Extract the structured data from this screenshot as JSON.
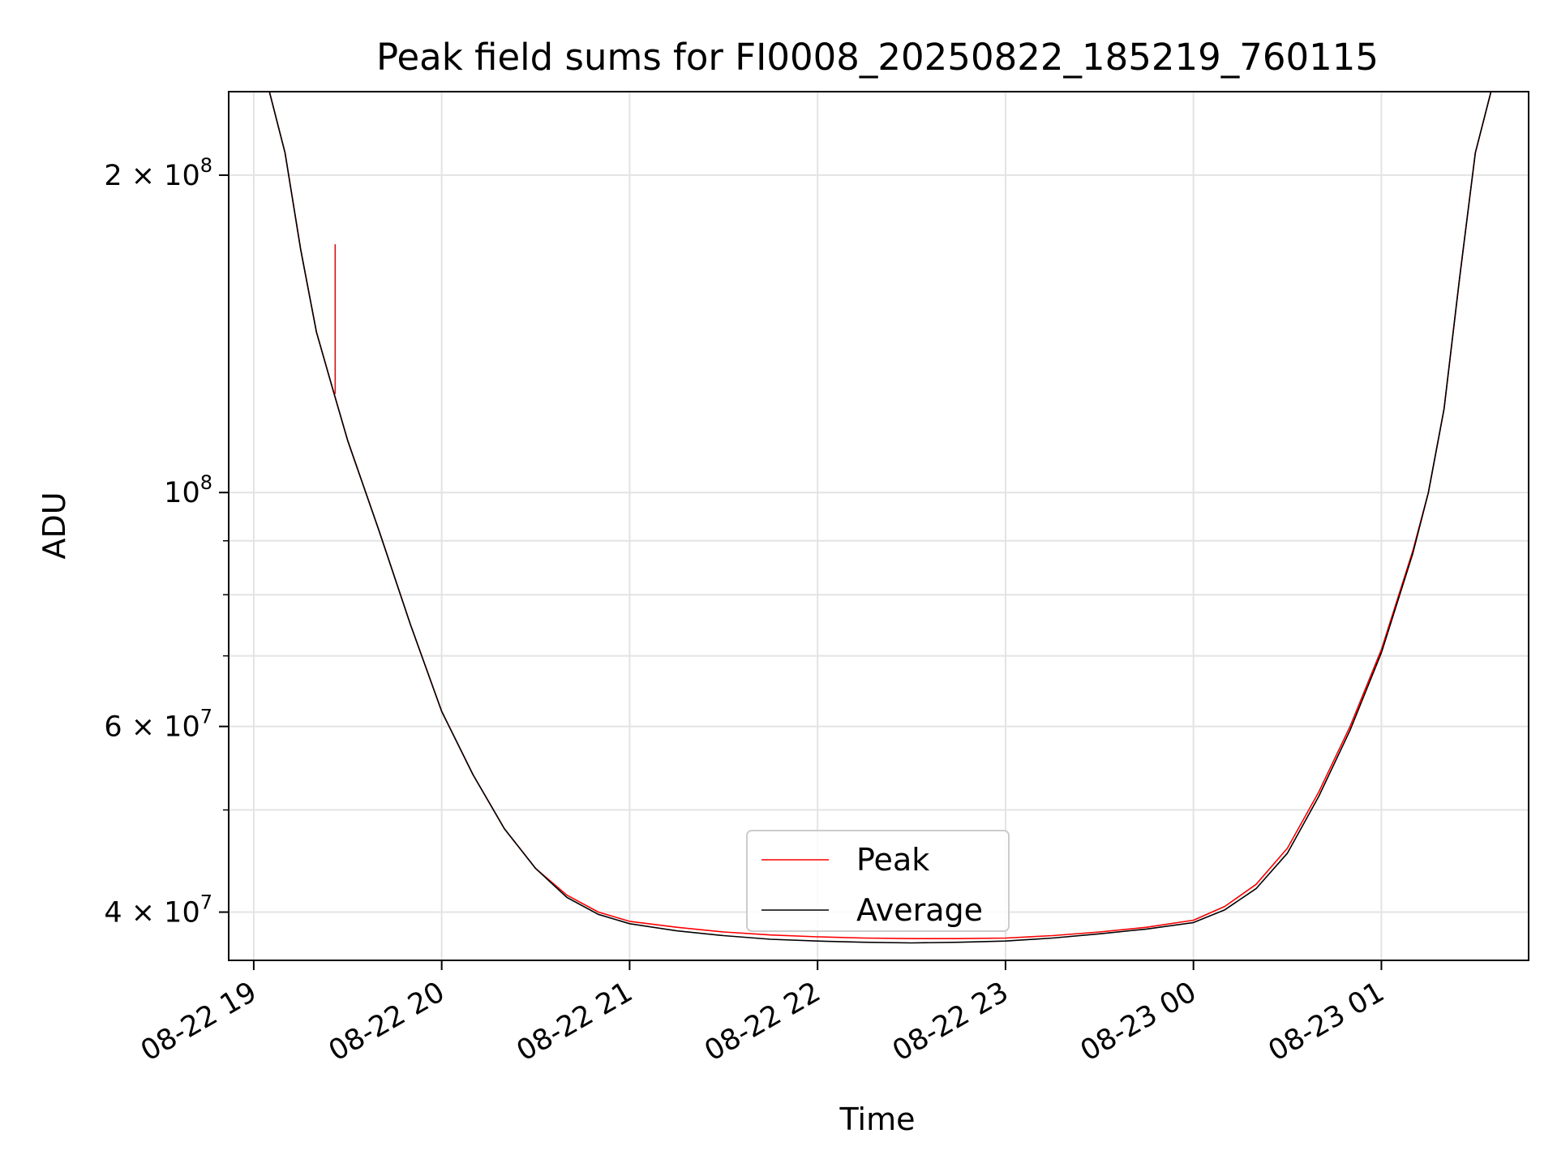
{
  "chart_data": {
    "type": "line",
    "title": "Peak field sums for FI0008_20250822_185219_760115",
    "xlabel": "Time",
    "ylabel": "ADU",
    "x_axis": "datetime",
    "y_scale": "log",
    "xlim": [
      "2025-08-22 18:52",
      "2025-08-23 01:47"
    ],
    "ylim": [
      36000000,
      240000000
    ],
    "grid": true,
    "legend_position": "lower-center",
    "x_ticks": [
      {
        "value": "2025-08-22 19:00",
        "label": "08-22 19"
      },
      {
        "value": "2025-08-22 20:00",
        "label": "08-22 20"
      },
      {
        "value": "2025-08-22 21:00",
        "label": "08-22 21"
      },
      {
        "value": "2025-08-22 22:00",
        "label": "08-22 22"
      },
      {
        "value": "2025-08-22 23:00",
        "label": "08-22 23"
      },
      {
        "value": "2025-08-23 00:00",
        "label": "08-23 00"
      },
      {
        "value": "2025-08-23 01:00",
        "label": "08-23 01"
      }
    ],
    "y_ticks": [
      {
        "value": 40000000,
        "base": "4 × 10",
        "exp": "7"
      },
      {
        "value": 60000000,
        "base": "6 × 10",
        "exp": "7"
      },
      {
        "value": 100000000,
        "base": "10",
        "exp": "8"
      },
      {
        "value": 200000000,
        "base": "2 × 10",
        "exp": "8"
      }
    ],
    "y_minor_ticks": [
      50000000,
      70000000,
      80000000,
      90000000
    ],
    "colors": {
      "peak": "#ff0000",
      "average": "#000000",
      "grid": "#e3e3e3"
    },
    "x": [
      "2025-08-22 18:52",
      "2025-08-22 19:05",
      "2025-08-22 19:10",
      "2025-08-22 19:15",
      "2025-08-22 19:20",
      "2025-08-22 19:25",
      "2025-08-22 19:30",
      "2025-08-22 19:40",
      "2025-08-22 19:50",
      "2025-08-22 20:00",
      "2025-08-22 20:10",
      "2025-08-22 20:20",
      "2025-08-22 20:30",
      "2025-08-22 20:40",
      "2025-08-22 20:50",
      "2025-08-22 21:00",
      "2025-08-22 21:15",
      "2025-08-22 21:30",
      "2025-08-22 21:45",
      "2025-08-22 22:00",
      "2025-08-22 22:15",
      "2025-08-22 22:30",
      "2025-08-22 22:45",
      "2025-08-22 23:00",
      "2025-08-22 23:15",
      "2025-08-22 23:30",
      "2025-08-22 23:45",
      "2025-08-23 00:00",
      "2025-08-23 00:10",
      "2025-08-23 00:20",
      "2025-08-23 00:30",
      "2025-08-23 00:40",
      "2025-08-23 00:50",
      "2025-08-23 01:00",
      "2025-08-23 01:10",
      "2025-08-23 01:15",
      "2025-08-23 01:20",
      "2025-08-23 01:25",
      "2025-08-23 01:30",
      "2025-08-23 01:35",
      "2025-08-23 01:47"
    ],
    "series": [
      {
        "name": "Peak",
        "values": [
          240000000,
          240000000,
          210000000,
          170000000,
          142000000,
          126000000,
          112000000,
          92000000,
          75000000,
          62000000,
          54000000,
          48000000,
          44000000,
          41500000,
          40000000,
          39200000,
          38700000,
          38300000,
          38050000,
          37900000,
          37800000,
          37750000,
          37750000,
          37800000,
          38000000,
          38300000,
          38700000,
          39300000,
          40500000,
          42500000,
          46000000,
          52000000,
          60000000,
          71000000,
          88000000,
          100000000,
          120000000,
          160000000,
          210000000,
          240000000,
          240000000
        ]
      },
      {
        "name": "Average",
        "values": [
          240000000,
          240000000,
          210000000,
          170000000,
          142000000,
          126000000,
          112000000,
          92000000,
          75000000,
          62000000,
          54000000,
          48000000,
          44000000,
          41300000,
          39800000,
          39000000,
          38400000,
          38000000,
          37700000,
          37550000,
          37450000,
          37400000,
          37450000,
          37550000,
          37800000,
          38150000,
          38550000,
          39100000,
          40200000,
          42100000,
          45500000,
          51500000,
          59500000,
          70500000,
          87500000,
          100000000,
          120000000,
          160000000,
          210000000,
          240000000,
          240000000
        ]
      }
    ],
    "peak_spike": {
      "x": "2025-08-22 19:26",
      "from": 124000000,
      "to": 172000000
    }
  }
}
